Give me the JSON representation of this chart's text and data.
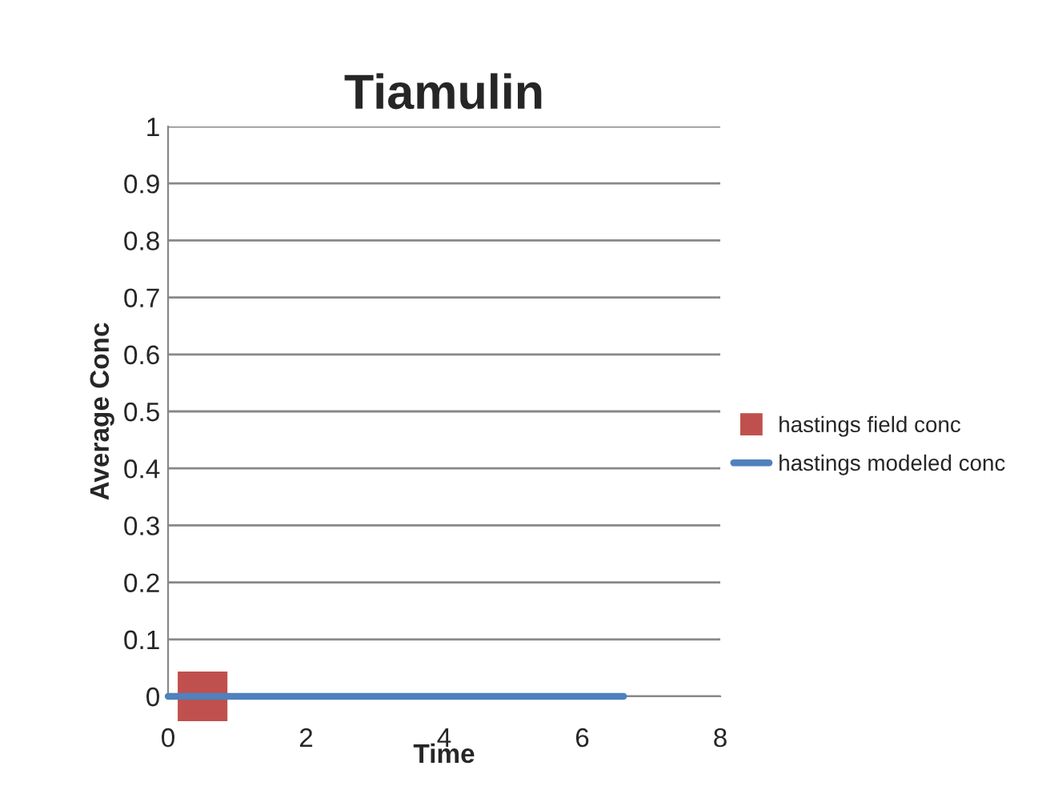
{
  "chart_data": {
    "type": "line",
    "title": "Tiamulin",
    "xlabel": "Time",
    "ylabel": "Average Conc",
    "series": [
      {
        "name": "hastings field conc",
        "type": "scatter",
        "marker": "square",
        "color": "#c0504d",
        "x": [
          0.5
        ],
        "values": [
          0
        ]
      },
      {
        "name": "hastings modeled conc",
        "marker": "none",
        "color": "#4f81bd",
        "x": [
          0,
          6.6
        ],
        "values": [
          0,
          0
        ]
      }
    ],
    "xlim": [
      0,
      8
    ],
    "xticks": [
      0,
      2,
      4,
      6,
      8
    ],
    "ylim": [
      0,
      1
    ],
    "yticks": [
      0,
      0.1,
      0.2,
      0.3,
      0.4,
      0.5,
      0.6,
      0.7,
      0.8,
      0.9,
      1
    ],
    "grid": "y",
    "legend": "right"
  }
}
